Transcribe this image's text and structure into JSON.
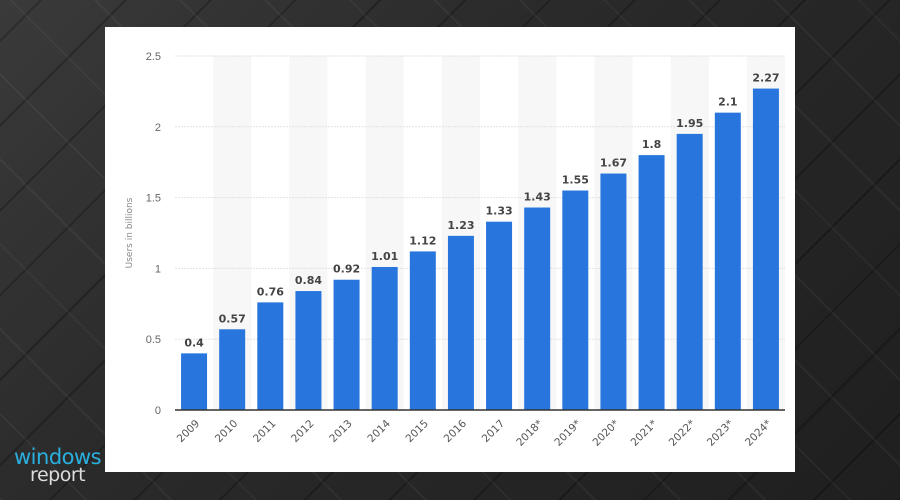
{
  "chart_data": {
    "type": "bar",
    "title": "",
    "xlabel": "",
    "ylabel": "Users in billions",
    "ylim": [
      0,
      2.5
    ],
    "yticks": [
      "0",
      "0.5",
      "1",
      "1.5",
      "2",
      "2.5"
    ],
    "grid": true,
    "categories": [
      "2009",
      "2010",
      "2011",
      "2012",
      "2013",
      "2014",
      "2015",
      "2016",
      "2017",
      "2018*",
      "2019*",
      "2020*",
      "2021*",
      "2022*",
      "2023*",
      "2024*"
    ],
    "values": [
      0.4,
      0.57,
      0.76,
      0.84,
      0.92,
      1.01,
      1.12,
      1.23,
      1.33,
      1.43,
      1.55,
      1.67,
      1.8,
      1.95,
      2.1,
      2.27
    ],
    "data_labels": [
      "0.4",
      "0.57",
      "0.76",
      "0.84",
      "0.92",
      "1.01",
      "1.12",
      "1.23",
      "1.33",
      "1.43",
      "1.55",
      "1.67",
      "1.8",
      "1.95",
      "2.1",
      "2.27"
    ],
    "bar_color": "#2876dd"
  },
  "logo": {
    "line1": "windows",
    "line2": "report"
  }
}
